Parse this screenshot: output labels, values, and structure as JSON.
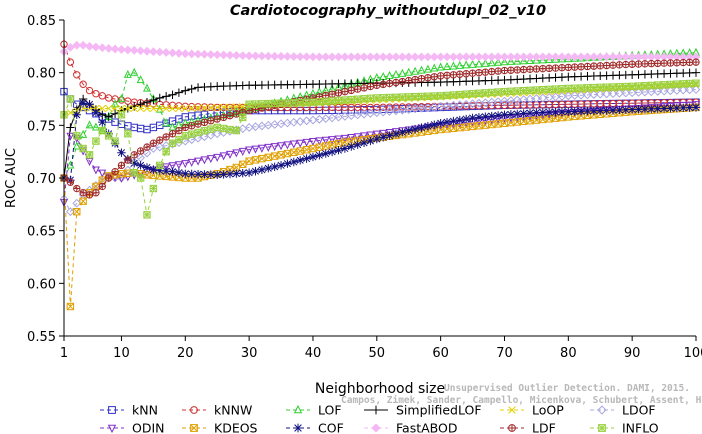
{
  "chart_data": {
    "type": "line",
    "title": "Cardiotocography_withoutdupl_02_v10",
    "xlabel": "Neighborhood size",
    "ylabel": "ROC AUC",
    "xlim": [
      1,
      100
    ],
    "ylim": [
      0.55,
      0.85
    ],
    "xticks": [
      1,
      10,
      20,
      30,
      40,
      50,
      60,
      70,
      80,
      90,
      100
    ],
    "yticks": [
      0.55,
      0.6,
      0.65,
      0.7,
      0.75,
      0.8,
      0.85
    ],
    "grid": false,
    "legend_position": "bottom",
    "watermark": {
      "line1": "Unsupervised Outlier Detection. DAMI, 2015.",
      "line2": "Campos, Zimek, Sander, Campello, Micenkova, Schubert, Assent, Houle"
    },
    "series": [
      {
        "name": "kNN",
        "color": "#3030c8",
        "marker": "square",
        "dash": "4,3",
        "points": [
          [
            1,
            0.782
          ],
          [
            2,
            0.775
          ],
          [
            3,
            0.77
          ],
          [
            4,
            0.767
          ],
          [
            5,
            0.764
          ],
          [
            6,
            0.761
          ],
          [
            7,
            0.758
          ],
          [
            8,
            0.756
          ],
          [
            9,
            0.753
          ],
          [
            10,
            0.751
          ],
          [
            12,
            0.748
          ],
          [
            14,
            0.746
          ],
          [
            16,
            0.75
          ],
          [
            18,
            0.754
          ],
          [
            20,
            0.758
          ],
          [
            25,
            0.762
          ],
          [
            30,
            0.764
          ],
          [
            40,
            0.764
          ],
          [
            50,
            0.765
          ],
          [
            60,
            0.767
          ],
          [
            70,
            0.769
          ],
          [
            80,
            0.77
          ],
          [
            90,
            0.771
          ],
          [
            100,
            0.772
          ]
        ]
      },
      {
        "name": "kNNW",
        "color": "#d03030",
        "marker": "circle",
        "dash": "4,3",
        "points": [
          [
            1,
            0.827
          ],
          [
            2,
            0.81
          ],
          [
            3,
            0.798
          ],
          [
            4,
            0.789
          ],
          [
            5,
            0.783
          ],
          [
            6,
            0.78
          ],
          [
            7,
            0.778
          ],
          [
            8,
            0.776
          ],
          [
            10,
            0.774
          ],
          [
            12,
            0.772
          ],
          [
            14,
            0.771
          ],
          [
            16,
            0.77
          ],
          [
            20,
            0.768
          ],
          [
            25,
            0.767
          ],
          [
            30,
            0.767
          ],
          [
            40,
            0.767
          ],
          [
            50,
            0.767
          ],
          [
            60,
            0.768
          ],
          [
            70,
            0.769
          ],
          [
            80,
            0.77
          ],
          [
            90,
            0.771
          ],
          [
            100,
            0.772
          ]
        ]
      },
      {
        "name": "LOF",
        "color": "#30d030",
        "marker": "triangle",
        "dash": "4,3",
        "points": [
          [
            1,
            0.7
          ],
          [
            2,
            0.712
          ],
          [
            3,
            0.73
          ],
          [
            4,
            0.741
          ],
          [
            5,
            0.75
          ],
          [
            6,
            0.748
          ],
          [
            7,
            0.745
          ],
          [
            8,
            0.758
          ],
          [
            9,
            0.77
          ],
          [
            10,
            0.775
          ],
          [
            11,
            0.798
          ],
          [
            12,
            0.8
          ],
          [
            13,
            0.793
          ],
          [
            14,
            0.785
          ],
          [
            15,
            0.775
          ],
          [
            16,
            0.765
          ],
          [
            17,
            0.752
          ],
          [
            18,
            0.748
          ],
          [
            20,
            0.752
          ],
          [
            25,
            0.758
          ],
          [
            30,
            0.765
          ],
          [
            40,
            0.78
          ],
          [
            50,
            0.795
          ],
          [
            60,
            0.805
          ],
          [
            70,
            0.81
          ],
          [
            80,
            0.813
          ],
          [
            90,
            0.816
          ],
          [
            100,
            0.819
          ]
        ]
      },
      {
        "name": "SimplifiedLOF",
        "color": "#000000",
        "marker": "plus",
        "dash": "",
        "points": [
          [
            1,
            0.7
          ],
          [
            2,
            0.748
          ],
          [
            3,
            0.765
          ],
          [
            4,
            0.775
          ],
          [
            5,
            0.77
          ],
          [
            6,
            0.765
          ],
          [
            7,
            0.76
          ],
          [
            8,
            0.758
          ],
          [
            10,
            0.764
          ],
          [
            12,
            0.768
          ],
          [
            14,
            0.772
          ],
          [
            16,
            0.776
          ],
          [
            18,
            0.779
          ],
          [
            20,
            0.783
          ],
          [
            22,
            0.786
          ],
          [
            25,
            0.787
          ],
          [
            30,
            0.788
          ],
          [
            40,
            0.789
          ],
          [
            50,
            0.79
          ],
          [
            60,
            0.791
          ],
          [
            70,
            0.793
          ],
          [
            80,
            0.796
          ],
          [
            90,
            0.798
          ],
          [
            100,
            0.8
          ]
        ]
      },
      {
        "name": "LoOP",
        "color": "#e0d000",
        "marker": "cross",
        "dash": "4,3",
        "points": [
          [
            1,
            0.76
          ],
          [
            2,
            0.762
          ],
          [
            3,
            0.764
          ],
          [
            4,
            0.766
          ],
          [
            5,
            0.766
          ],
          [
            8,
            0.766
          ],
          [
            10,
            0.766
          ],
          [
            15,
            0.766
          ],
          [
            20,
            0.766
          ],
          [
            30,
            0.768
          ],
          [
            40,
            0.771
          ],
          [
            50,
            0.774
          ],
          [
            60,
            0.777
          ],
          [
            70,
            0.78
          ],
          [
            80,
            0.783
          ],
          [
            90,
            0.786
          ],
          [
            100,
            0.789
          ]
        ]
      },
      {
        "name": "LDOF",
        "color": "#a8a8e0",
        "marker": "diamond",
        "dash": "4,3",
        "points": [
          [
            1,
            0.68
          ],
          [
            2,
            0.668
          ],
          [
            3,
            0.676
          ],
          [
            4,
            0.684
          ],
          [
            6,
            0.693
          ],
          [
            8,
            0.7
          ],
          [
            10,
            0.7
          ],
          [
            12,
            0.715
          ],
          [
            15,
            0.728
          ],
          [
            20,
            0.735
          ],
          [
            25,
            0.742
          ],
          [
            30,
            0.748
          ],
          [
            40,
            0.755
          ],
          [
            50,
            0.762
          ],
          [
            60,
            0.768
          ],
          [
            70,
            0.773
          ],
          [
            80,
            0.778
          ],
          [
            90,
            0.781
          ],
          [
            100,
            0.784
          ]
        ]
      },
      {
        "name": "ODIN",
        "color": "#8030c8",
        "marker": "triangle-down",
        "dash": "4,3",
        "points": [
          [
            1,
            0.677
          ],
          [
            2,
            0.74
          ],
          [
            3,
            0.738
          ],
          [
            4,
            0.726
          ],
          [
            5,
            0.716
          ],
          [
            6,
            0.708
          ],
          [
            8,
            0.702
          ],
          [
            10,
            0.7
          ],
          [
            12,
            0.703
          ],
          [
            14,
            0.706
          ],
          [
            16,
            0.71
          ],
          [
            18,
            0.712
          ],
          [
            20,
            0.714
          ],
          [
            25,
            0.72
          ],
          [
            30,
            0.727
          ],
          [
            35,
            0.731
          ],
          [
            40,
            0.735
          ],
          [
            45,
            0.738
          ],
          [
            50,
            0.742
          ],
          [
            55,
            0.746
          ],
          [
            60,
            0.75
          ],
          [
            70,
            0.757
          ],
          [
            80,
            0.762
          ],
          [
            90,
            0.766
          ],
          [
            100,
            0.77
          ]
        ]
      },
      {
        "name": "KDEOS",
        "color": "#e0a000",
        "marker": "square-x",
        "dash": "4,3",
        "points": [
          [
            1,
            0.7
          ],
          [
            2,
            0.578
          ],
          [
            3,
            0.668
          ],
          [
            4,
            0.678
          ],
          [
            5,
            0.686
          ],
          [
            6,
            0.692
          ],
          [
            7,
            0.698
          ],
          [
            8,
            0.702
          ],
          [
            10,
            0.704
          ],
          [
            12,
            0.705
          ],
          [
            14,
            0.703
          ],
          [
            16,
            0.702
          ],
          [
            18,
            0.701
          ],
          [
            20,
            0.7
          ],
          [
            22,
            0.7
          ],
          [
            25,
            0.704
          ],
          [
            28,
            0.71
          ],
          [
            30,
            0.716
          ],
          [
            35,
            0.722
          ],
          [
            40,
            0.728
          ],
          [
            45,
            0.734
          ],
          [
            50,
            0.738
          ],
          [
            55,
            0.742
          ],
          [
            60,
            0.746
          ],
          [
            70,
            0.752
          ],
          [
            80,
            0.758
          ],
          [
            90,
            0.763
          ],
          [
            100,
            0.767
          ]
        ]
      },
      {
        "name": "COF",
        "color": "#101080",
        "marker": "star",
        "dash": "4,3",
        "points": [
          [
            1,
            0.7
          ],
          [
            2,
            0.698
          ],
          [
            3,
            0.76
          ],
          [
            4,
            0.771
          ],
          [
            5,
            0.77
          ],
          [
            6,
            0.762
          ],
          [
            7,
            0.753
          ],
          [
            8,
            0.742
          ],
          [
            9,
            0.733
          ],
          [
            10,
            0.724
          ],
          [
            11,
            0.718
          ],
          [
            12,
            0.714
          ],
          [
            13,
            0.712
          ],
          [
            14,
            0.71
          ],
          [
            15,
            0.708
          ],
          [
            16,
            0.707
          ],
          [
            18,
            0.706
          ],
          [
            20,
            0.704
          ],
          [
            25,
            0.703
          ],
          [
            30,
            0.705
          ],
          [
            35,
            0.712
          ],
          [
            40,
            0.72
          ],
          [
            45,
            0.728
          ],
          [
            50,
            0.737
          ],
          [
            55,
            0.745
          ],
          [
            60,
            0.752
          ],
          [
            65,
            0.757
          ],
          [
            70,
            0.76
          ],
          [
            75,
            0.762
          ],
          [
            80,
            0.763
          ],
          [
            85,
            0.764
          ],
          [
            90,
            0.765
          ],
          [
            95,
            0.766
          ],
          [
            100,
            0.767
          ]
        ]
      },
      {
        "name": "FastABOD",
        "color": "#f4b8f4",
        "marker": "diamond-filled",
        "dash": "4,3",
        "points": [
          [
            1,
            0.82
          ],
          [
            2,
            0.824
          ],
          [
            3,
            0.826
          ],
          [
            4,
            0.826
          ],
          [
            5,
            0.825
          ],
          [
            8,
            0.823
          ],
          [
            10,
            0.822
          ],
          [
            15,
            0.82
          ],
          [
            20,
            0.818
          ],
          [
            25,
            0.817
          ],
          [
            30,
            0.816
          ],
          [
            40,
            0.815
          ],
          [
            50,
            0.815
          ],
          [
            60,
            0.815
          ],
          [
            70,
            0.815
          ],
          [
            80,
            0.815
          ],
          [
            90,
            0.815
          ],
          [
            100,
            0.815
          ]
        ]
      },
      {
        "name": "LDF",
        "color": "#a02828",
        "marker": "circle-plus",
        "dash": "4,3",
        "points": [
          [
            1,
            0.7
          ],
          [
            2,
            0.696
          ],
          [
            3,
            0.69
          ],
          [
            4,
            0.686
          ],
          [
            5,
            0.684
          ],
          [
            6,
            0.686
          ],
          [
            7,
            0.692
          ],
          [
            8,
            0.7
          ],
          [
            10,
            0.712
          ],
          [
            12,
            0.722
          ],
          [
            15,
            0.733
          ],
          [
            18,
            0.742
          ],
          [
            20,
            0.748
          ],
          [
            25,
            0.756
          ],
          [
            30,
            0.764
          ],
          [
            40,
            0.776
          ],
          [
            50,
            0.788
          ],
          [
            60,
            0.797
          ],
          [
            70,
            0.802
          ],
          [
            80,
            0.805
          ],
          [
            90,
            0.808
          ],
          [
            100,
            0.81
          ]
        ]
      },
      {
        "name": "INFLO",
        "color": "#98d040",
        "marker": "star-box",
        "dash": "4,3",
        "points": [
          [
            1,
            0.76
          ],
          [
            2,
            0.775
          ],
          [
            3,
            0.74
          ],
          [
            4,
            0.728
          ],
          [
            5,
            0.722
          ],
          [
            6,
            0.735
          ],
          [
            7,
            0.745
          ],
          [
            8,
            0.74
          ],
          [
            9,
            0.735
          ],
          [
            10,
            0.76
          ],
          [
            11,
            0.742
          ],
          [
            12,
            0.705
          ],
          [
            13,
            0.7
          ],
          [
            14,
            0.665
          ],
          [
            15,
            0.69
          ],
          [
            16,
            0.712
          ],
          [
            17,
            0.725
          ],
          [
            18,
            0.733
          ],
          [
            20,
            0.74
          ],
          [
            25,
            0.748
          ],
          [
            28,
            0.745
          ],
          [
            30,
            0.77
          ],
          [
            40,
            0.772
          ],
          [
            50,
            0.776
          ],
          [
            60,
            0.778
          ],
          [
            70,
            0.782
          ],
          [
            80,
            0.785
          ],
          [
            90,
            0.787
          ],
          [
            100,
            0.79
          ]
        ]
      }
    ]
  }
}
